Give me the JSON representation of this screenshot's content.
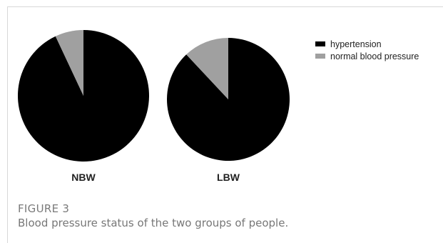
{
  "figure": {
    "label": "FIGURE 3",
    "caption": "Blood pressure status of the two groups of people."
  },
  "chart_data": [
    {
      "type": "pie",
      "title": "NBW",
      "categories": [
        "hypertension",
        "normal blood pressure"
      ],
      "values": [
        93,
        7
      ],
      "colors": [
        "#000000",
        "#a0a0a0"
      ]
    },
    {
      "type": "pie",
      "title": "LBW",
      "categories": [
        "hypertension",
        "normal blood pressure"
      ],
      "values": [
        88,
        12
      ],
      "colors": [
        "#000000",
        "#a0a0a0"
      ]
    }
  ],
  "legend": {
    "placement": "top-right",
    "items": [
      {
        "label": "hypertension",
        "color": "#000000"
      },
      {
        "label": "normal blood pressure",
        "color": "#a0a0a0"
      }
    ]
  }
}
